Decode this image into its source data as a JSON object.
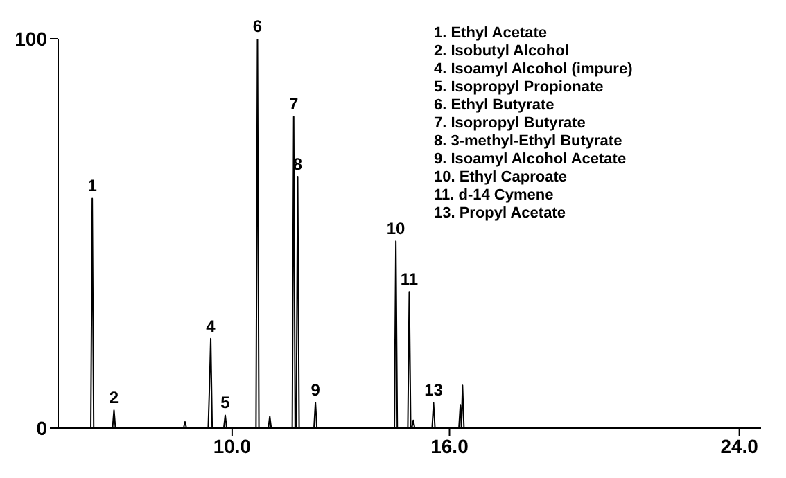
{
  "chart_data": {
    "type": "line",
    "color": "#000000",
    "marker": "none",
    "line_style": "solid",
    "grid": false,
    "legend": false,
    "x": [
      5.2,
      6.1,
      6.14,
      6.18,
      6.7,
      6.74,
      6.78,
      8.66,
      8.7,
      8.74,
      9.34,
      9.38,
      9.41,
      9.45,
      9.77,
      9.81,
      9.85,
      10.66,
      10.7,
      10.74,
      11.0,
      11.04,
      11.08,
      11.66,
      11.7,
      11.74,
      11.77,
      11.81,
      11.85,
      12.26,
      12.3,
      12.34,
      14.48,
      14.52,
      14.56,
      14.85,
      14.89,
      14.93,
      14.96,
      15.0,
      15.04,
      15.52,
      15.56,
      15.6,
      16.26,
      16.3,
      16.33,
      16.36,
      16.4,
      24.6
    ],
    "values": [
      0,
      0,
      59,
      0,
      0,
      4.6,
      0,
      0,
      1.6,
      0,
      0,
      12,
      23,
      0,
      0,
      3.3,
      0,
      0,
      100,
      0,
      0,
      3,
      0,
      0,
      80,
      0,
      0,
      64.6,
      0,
      0,
      6.6,
      0,
      0,
      48,
      0,
      0,
      35,
      0,
      0,
      2,
      0,
      0,
      6.5,
      0,
      0,
      6,
      0,
      11,
      0,
      0
    ],
    "xlim": [
      5.2,
      24.6
    ],
    "xticks": [
      {
        "value": 10,
        "label": "10.0"
      },
      {
        "value": 16,
        "label": "16.0"
      },
      {
        "value": 24,
        "label": "24.0"
      }
    ],
    "ylim": [
      0,
      100
    ],
    "yticks": [
      0,
      100
    ],
    "annotations": [
      {
        "text": "1",
        "x": 6.14,
        "y": 59
      },
      {
        "text": "2",
        "x": 6.74,
        "y": 4.6
      },
      {
        "text": "4",
        "x": 9.41,
        "y": 23
      },
      {
        "text": "5",
        "x": 9.81,
        "y": 3.3
      },
      {
        "text": "6",
        "x": 10.7,
        "y": 100
      },
      {
        "text": "7",
        "x": 11.7,
        "y": 80
      },
      {
        "text": "8",
        "x": 11.81,
        "y": 64.6
      },
      {
        "text": "9",
        "x": 12.3,
        "y": 6.6
      },
      {
        "text": "10",
        "x": 14.52,
        "y": 48
      },
      {
        "text": "11",
        "x": 14.89,
        "y": 35
      },
      {
        "text": "13",
        "x": 15.56,
        "y": 6.5
      },
      "1. Ethyl Acetate",
      "2. Isobutyl Alcohol",
      "4. Isoamyl Alcohol (impure)",
      "5. Isopropyl Propionate",
      "6. Ethyl Butyrate",
      "7. Isopropyl Butyrate",
      "8. 3-methyl-Ethyl Butyrate",
      "9. Isoamyl Alcohol Acetate",
      "10. Ethyl Caproate",
      "11. d-14 Cymene",
      "13. Propyl Acetate"
    ]
  }
}
